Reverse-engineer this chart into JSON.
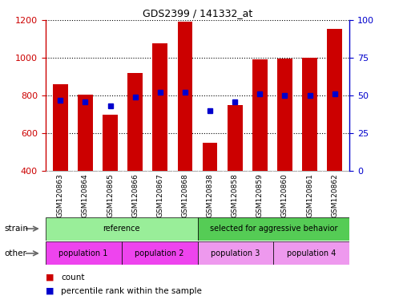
{
  "title": "GDS2399 / 141332_at",
  "samples": [
    "GSM120863",
    "GSM120864",
    "GSM120865",
    "GSM120866",
    "GSM120867",
    "GSM120868",
    "GSM120838",
    "GSM120858",
    "GSM120859",
    "GSM120860",
    "GSM120861",
    "GSM120862"
  ],
  "counts": [
    860,
    805,
    700,
    920,
    1075,
    1190,
    550,
    750,
    990,
    995,
    1000,
    1155
  ],
  "percentile_ranks": [
    47,
    46,
    43,
    49,
    52,
    52,
    40,
    46,
    51,
    50,
    50,
    51
  ],
  "ymin": 400,
  "ymax": 1200,
  "yticks_left": [
    400,
    600,
    800,
    1000,
    1200
  ],
  "yticks_right": [
    0,
    25,
    50,
    75,
    100
  ],
  "bar_color": "#cc0000",
  "dot_color": "#0000cc",
  "strain_groups": [
    {
      "label": "reference",
      "start": 0,
      "end": 6,
      "color": "#99ee99"
    },
    {
      "label": "selected for aggressive behavior",
      "start": 6,
      "end": 12,
      "color": "#55cc55"
    }
  ],
  "other_groups": [
    {
      "label": "population 1",
      "start": 0,
      "end": 3,
      "color": "#ee44ee"
    },
    {
      "label": "population 2",
      "start": 3,
      "end": 6,
      "color": "#ee44ee"
    },
    {
      "label": "population 3",
      "start": 6,
      "end": 9,
      "color": "#ee99ee"
    },
    {
      "label": "population 4",
      "start": 9,
      "end": 12,
      "color": "#ee99ee"
    }
  ],
  "strain_label": "strain",
  "other_label": "other",
  "legend_count_label": "count",
  "legend_pct_label": "percentile rank within the sample",
  "axis_left_color": "#cc0000",
  "axis_right_color": "#0000cc",
  "xtick_bg": "#cccccc",
  "plot_bg": "#ffffff"
}
